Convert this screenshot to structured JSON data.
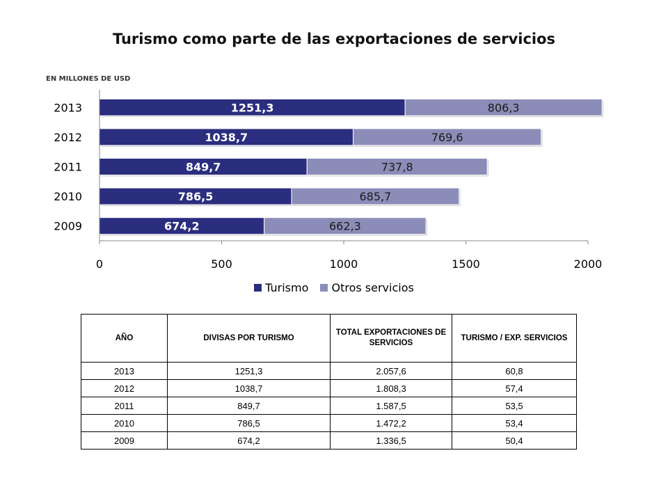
{
  "chart_data": {
    "type": "bar",
    "orientation": "horizontal",
    "stacked": true,
    "title": "Turismo como parte de las exportaciones de servicios",
    "unit_label": "EN MILLONES DE USD",
    "categories": [
      "2013",
      "2012",
      "2011",
      "2010",
      "2009"
    ],
    "series": [
      {
        "name": "Turismo",
        "color": "#2b2d7e",
        "values": [
          1251.3,
          1038.7,
          849.7,
          786.5,
          674.2
        ],
        "labels": [
          "1251,3",
          "1038,7",
          "849,7",
          "786,5",
          "674,2"
        ]
      },
      {
        "name": "Otros servicios",
        "color": "#8b8db8",
        "values": [
          806.3,
          769.6,
          737.8,
          685.7,
          662.3
        ],
        "labels": [
          "806,3",
          "769,6",
          "737,8",
          "685,7",
          "662,3"
        ]
      }
    ],
    "xlim": [
      0,
      2000
    ],
    "xticks": [
      0,
      500,
      1000,
      1500,
      2000
    ],
    "legend_position": "bottom",
    "grid": false
  },
  "table": {
    "headers": [
      "AÑO",
      "DIVISAS POR TURISMO",
      "TOTAL EXPORTACIONES DE SERVICIOS",
      "TURISMO / EXP. SERVICIOS"
    ],
    "rows": [
      [
        "2013",
        "1251,3",
        "2.057,6",
        "60,8"
      ],
      [
        "2012",
        "1038,7",
        "1.808,3",
        "57,4"
      ],
      [
        "2011",
        "849,7",
        "1.587,5",
        "53,5"
      ],
      [
        "2010",
        "786,5",
        "1.472,2",
        "53,4"
      ],
      [
        "2009",
        "674,2",
        "1.336,5",
        "50,4"
      ]
    ]
  }
}
